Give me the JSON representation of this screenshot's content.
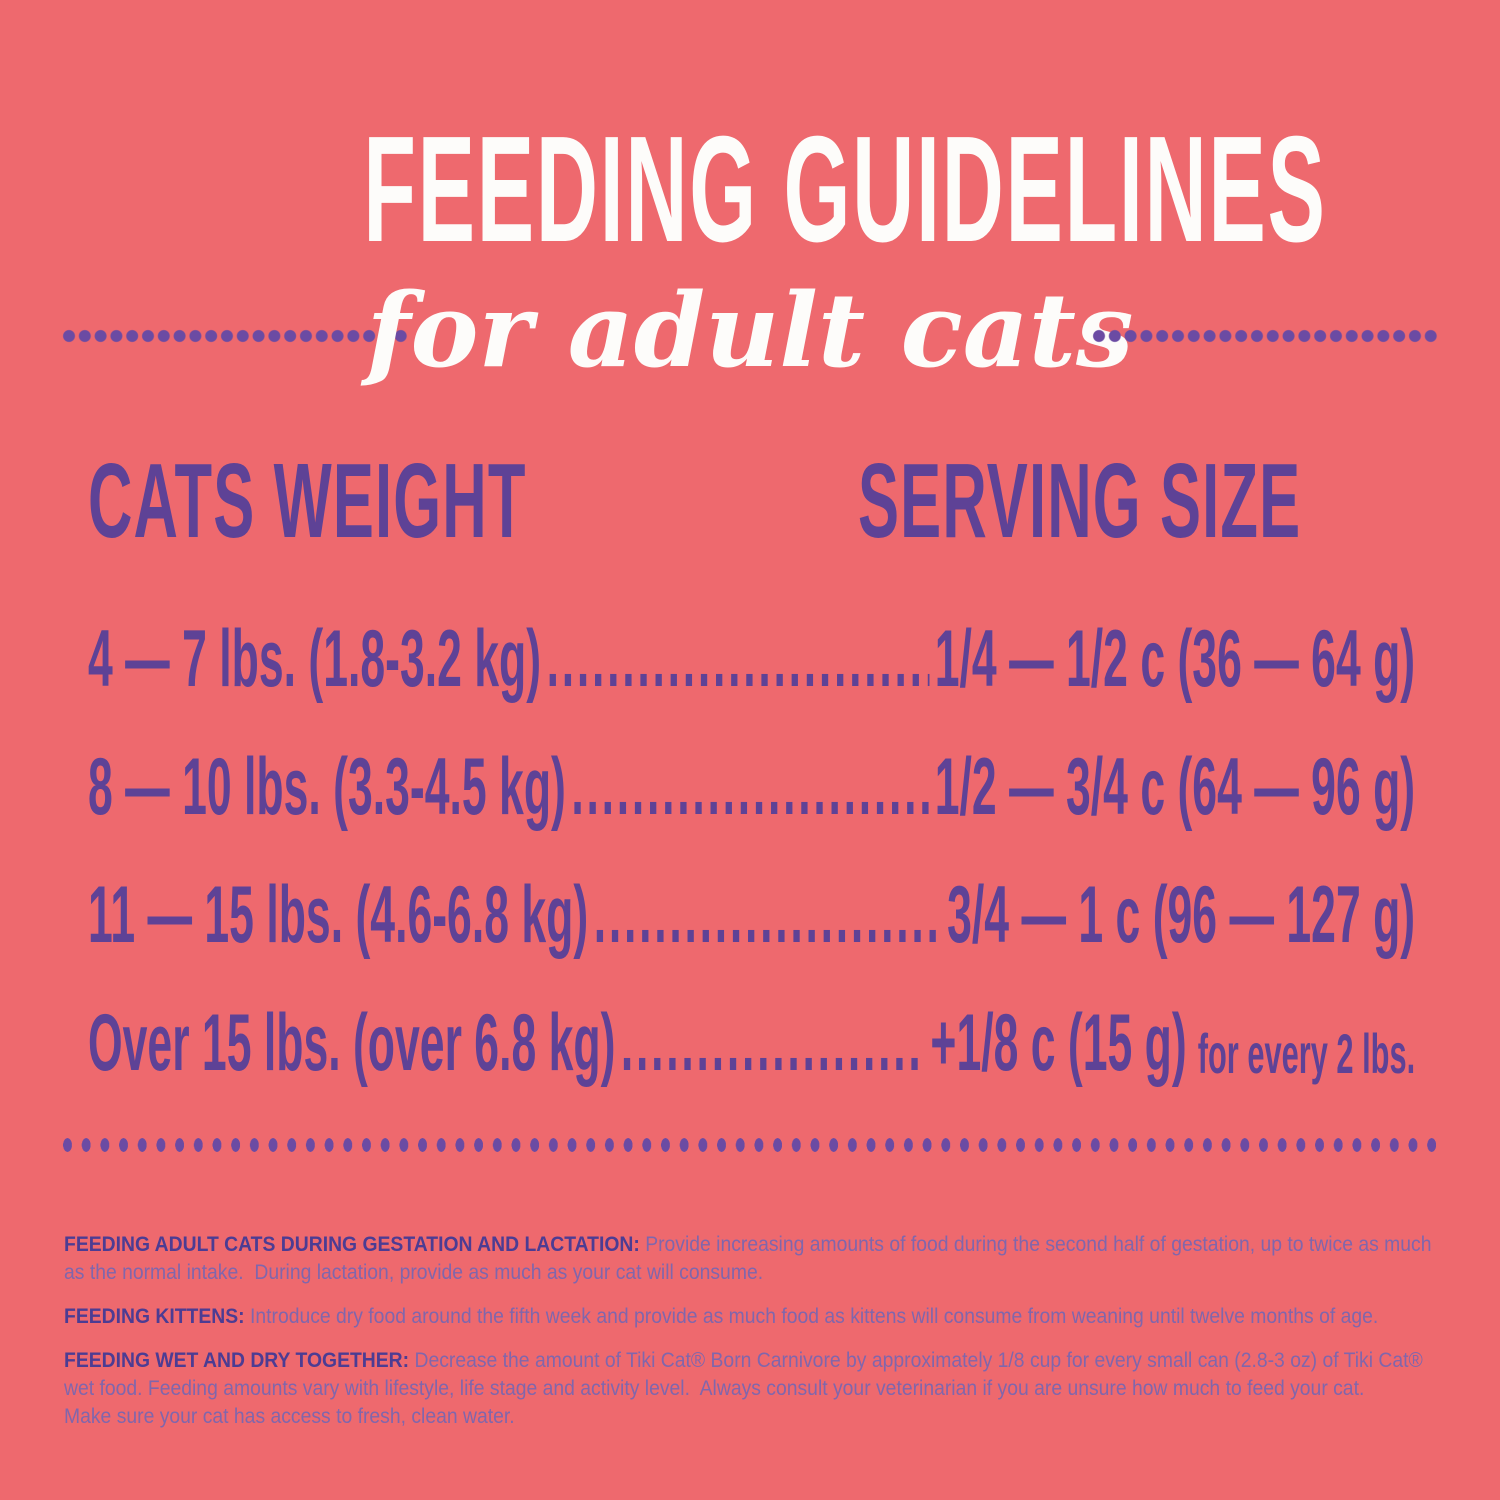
{
  "header": {
    "title": "FEEDING GUIDELINES",
    "subtitle": "for adult cats"
  },
  "table": {
    "col1_header": "CATS WEIGHT",
    "col2_header": "SERVING SIZE",
    "rows": [
      {
        "weight": "4 — 7 lbs. (1.8-3.2 kg)",
        "leader": "....................................",
        "serving": "1/4 — 1/2 c (36 — 64 g)",
        "suffix": ""
      },
      {
        "weight": "8 — 10 lbs. (3.3-4.5 kg)",
        "leader": "....................................",
        "serving": "1/2 — 3/4 c (64 — 96 g)",
        "suffix": ""
      },
      {
        "weight": "11 — 15 lbs. (4.6-6.8 kg)",
        "leader": "....................................",
        "serving": "3/4 — 1 c (96 — 127 g)",
        "suffix": ""
      },
      {
        "weight": "Over 15 lbs. (over 6.8 kg)",
        "leader": "....................................",
        "serving": "+1/8 c (15 g)",
        "suffix": "for every 2 lbs."
      }
    ]
  },
  "notes": [
    {
      "label": "FEEDING ADULT CATS DURING GESTATION AND LACTATION:",
      "text": "Provide increasing amounts of food during the second half of gestation, up to twice as much as the normal intake.  During lactation, provide as much as your cat will consume."
    },
    {
      "label": "FEEDING KITTENS:",
      "text": "Introduce dry food around the fifth week and provide as much food as kittens will consume from weaning until twelve months of age."
    },
    {
      "label": "FEEDING WET AND DRY TOGETHER:",
      "text": "Decrease the amount of Tiki Cat® Born Carnivore by approximately 1/8 cup for every small can (2.8-3 oz) of Tiki Cat® wet food. Feeding amounts vary with lifestyle, life stage and activity level.  Always consult your veterinarian if you are unsure how much to feed your cat.",
      "text2": "Make sure your cat has access to fresh, clean water."
    }
  ],
  "colors": {
    "background": "#ee696e",
    "table_purple": "#5e4296",
    "dot_purple": "#6b4ba3",
    "note_label_purple": "#4c3c93",
    "note_body_purple": "#8066ac",
    "title_white": "#fdfcfa"
  }
}
